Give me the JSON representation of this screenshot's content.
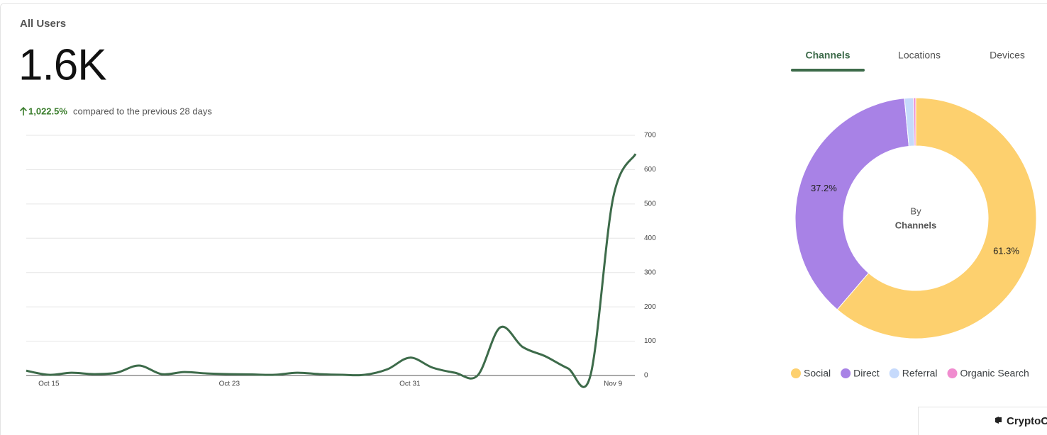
{
  "header": {
    "title": "All Users",
    "metric": "1.6K",
    "change": "1,022.5%",
    "comparison": "compared to the previous 28 days"
  },
  "tabs": {
    "items": [
      "Channels",
      "Locations",
      "Devices"
    ],
    "active": 0
  },
  "footer": {
    "label": "CryptoC"
  },
  "chart_data": [
    {
      "type": "line",
      "categories": [
        null,
        "Oct 15",
        null,
        null,
        null,
        null,
        null,
        null,
        null,
        "Oct 23",
        null,
        null,
        null,
        null,
        null,
        null,
        null,
        "Oct 31",
        null,
        null,
        null,
        null,
        null,
        null,
        null,
        null,
        "Nov 9",
        null
      ],
      "values": [
        14,
        2,
        8,
        4,
        8,
        29,
        4,
        10,
        6,
        4,
        3,
        2,
        8,
        4,
        2,
        2,
        18,
        52,
        23,
        8,
        0,
        140,
        83,
        56,
        21,
        0,
        516,
        646
      ],
      "color": "#3d6b4a",
      "ylim": [
        0,
        700
      ],
      "yticks": [
        0,
        100,
        200,
        300,
        400,
        500,
        600,
        700
      ],
      "grid": true
    },
    {
      "type": "donut",
      "center_text": [
        "By",
        "Channels"
      ],
      "categories": [
        "Social",
        "Direct",
        "Referral",
        "Organic Search"
      ],
      "values": [
        61.3,
        37.2,
        1.2,
        0.3
      ],
      "value_labels": [
        "61.3%",
        "37.2%",
        null,
        null
      ],
      "colors": [
        "#fdd06e",
        "#a882e6",
        "#c6dafc",
        "#f08ccf"
      ],
      "legend": "bottom"
    }
  ]
}
